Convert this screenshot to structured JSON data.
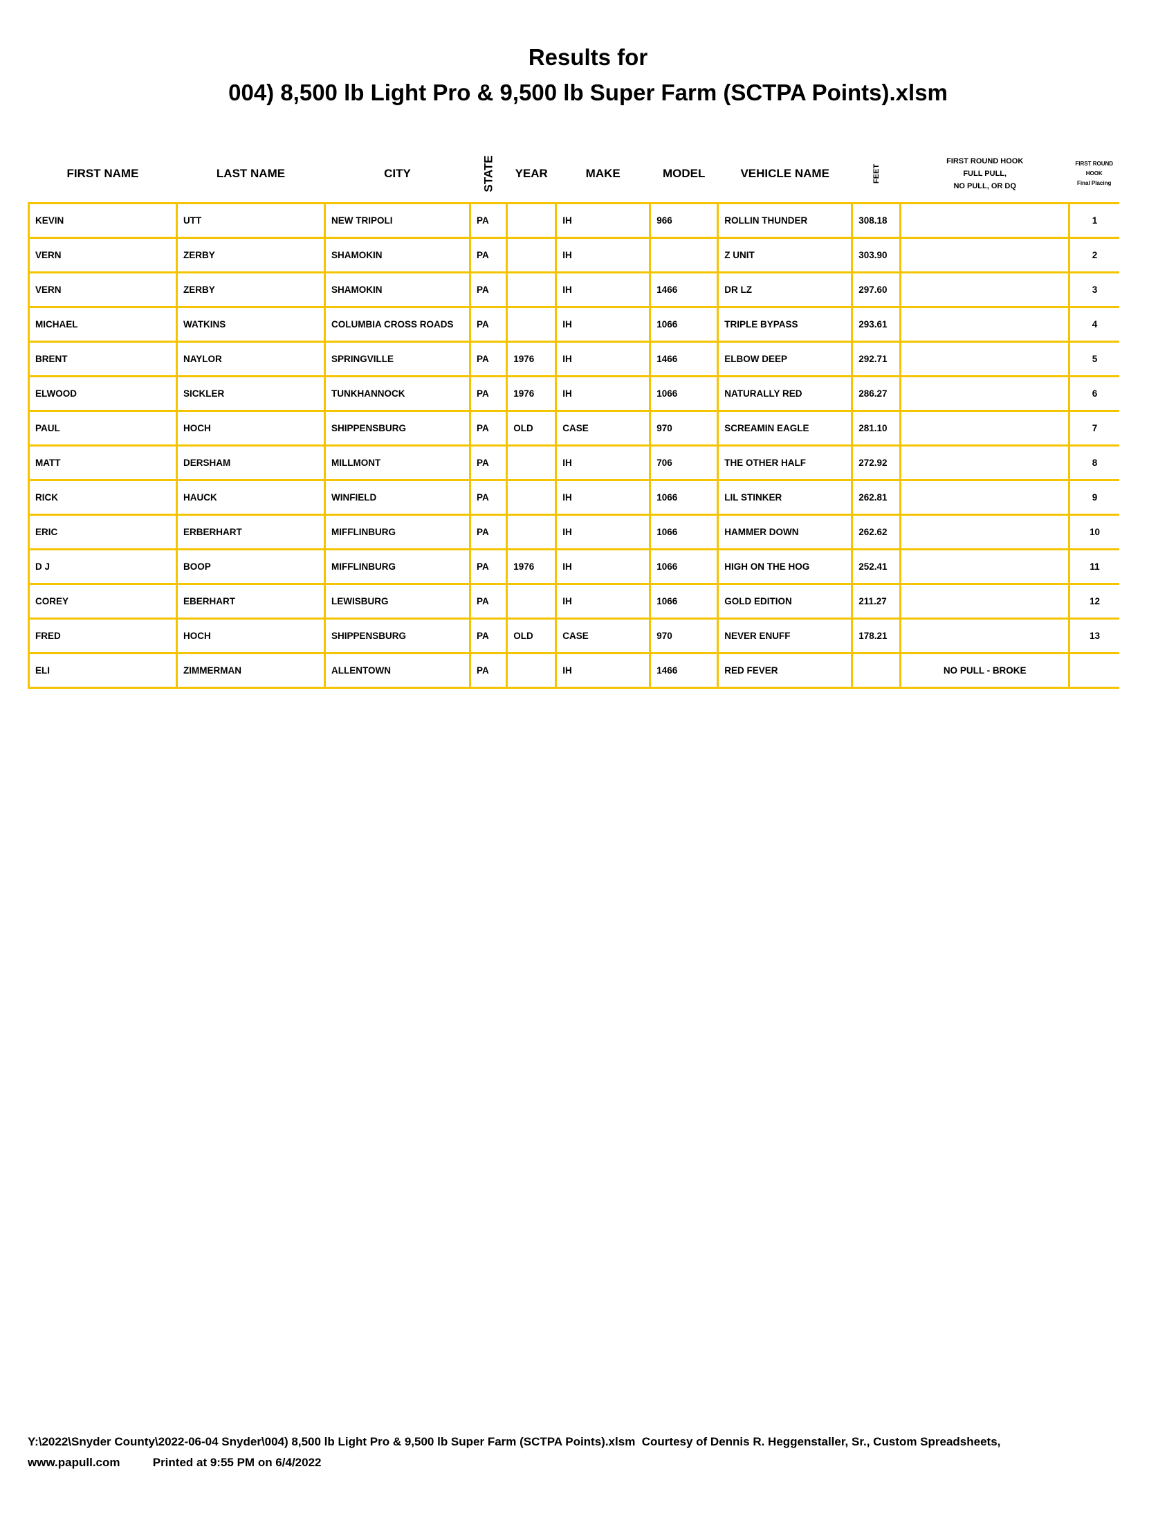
{
  "title_line1": "Results for",
  "title_line2": "004) 8,500 lb Light Pro & 9,500 lb Super Farm (SCTPA Points).xlsm",
  "border_color": "#f5c400",
  "headers": {
    "first_name": "FIRST NAME",
    "last_name": "LAST NAME",
    "city": "CITY",
    "state": "STATE",
    "year": "YEAR",
    "make": "MAKE",
    "model": "MODEL",
    "vehicle_name": "VEHICLE NAME",
    "feet": "FEET",
    "hook_status_1": "FIRST ROUND HOOK",
    "hook_status_2": "FULL PULL,",
    "hook_status_3": "NO PULL, OR DQ",
    "placing_1": "FIRST ROUND",
    "placing_2": "HOOK",
    "placing_3": "Final Placing"
  },
  "rows": [
    {
      "first": "KEVIN",
      "last": "UTT",
      "city": "NEW TRIPOLI",
      "state": "PA",
      "year": "",
      "make": "IH",
      "model": "966",
      "vehicle": "ROLLIN THUNDER",
      "feet": "308.18",
      "status": "",
      "place": "1"
    },
    {
      "first": "VERN",
      "last": "ZERBY",
      "city": "SHAMOKIN",
      "state": "PA",
      "year": "",
      "make": "IH",
      "model": "",
      "vehicle": "Z UNIT",
      "feet": "303.90",
      "status": "",
      "place": "2"
    },
    {
      "first": "VERN",
      "last": "ZERBY",
      "city": "SHAMOKIN",
      "state": "PA",
      "year": "",
      "make": "IH",
      "model": "1466",
      "vehicle": "DR LZ",
      "feet": "297.60",
      "status": "",
      "place": "3"
    },
    {
      "first": "MICHAEL",
      "last": "WATKINS",
      "city": "COLUMBIA CROSS ROADS",
      "state": "PA",
      "year": "",
      "make": "IH",
      "model": "1066",
      "vehicle": "TRIPLE BYPASS",
      "feet": "293.61",
      "status": "",
      "place": "4"
    },
    {
      "first": "BRENT",
      "last": "NAYLOR",
      "city": "SPRINGVILLE",
      "state": "PA",
      "year": "1976",
      "make": "IH",
      "model": "1466",
      "vehicle": "ELBOW DEEP",
      "feet": "292.71",
      "status": "",
      "place": "5"
    },
    {
      "first": "ELWOOD",
      "last": "SICKLER",
      "city": "TUNKHANNOCK",
      "state": "PA",
      "year": "1976",
      "make": "IH",
      "model": "1066",
      "vehicle": "NATURALLY RED",
      "feet": "286.27",
      "status": "",
      "place": "6"
    },
    {
      "first": "PAUL",
      "last": "HOCH",
      "city": "SHIPPENSBURG",
      "state": "PA",
      "year": "OLD",
      "make": "CASE",
      "model": "970",
      "vehicle": "SCREAMIN EAGLE",
      "feet": "281.10",
      "status": "",
      "place": "7"
    },
    {
      "first": "MATT",
      "last": "DERSHAM",
      "city": "MILLMONT",
      "state": "PA",
      "year": "",
      "make": "IH",
      "model": "706",
      "vehicle": "THE OTHER HALF",
      "feet": "272.92",
      "status": "",
      "place": "8"
    },
    {
      "first": "RICK",
      "last": "HAUCK",
      "city": "WINFIELD",
      "state": "PA",
      "year": "",
      "make": "IH",
      "model": "1066",
      "vehicle": "LIL STINKER",
      "feet": "262.81",
      "status": "",
      "place": "9"
    },
    {
      "first": "ERIC",
      "last": "ERBERHART",
      "city": "MIFFLINBURG",
      "state": "PA",
      "year": "",
      "make": "IH",
      "model": "1066",
      "vehicle": "HAMMER DOWN",
      "feet": "262.62",
      "status": "",
      "place": "10"
    },
    {
      "first": "D J",
      "last": "BOOP",
      "city": "MIFFLINBURG",
      "state": "PA",
      "year": "1976",
      "make": "IH",
      "model": "1066",
      "vehicle": "HIGH ON THE HOG",
      "feet": "252.41",
      "status": "",
      "place": "11"
    },
    {
      "first": "COREY",
      "last": "EBERHART",
      "city": "LEWISBURG",
      "state": "PA",
      "year": "",
      "make": "IH",
      "model": "1066",
      "vehicle": "GOLD EDITION",
      "feet": "211.27",
      "status": "",
      "place": "12"
    },
    {
      "first": "FRED",
      "last": "HOCH",
      "city": "SHIPPENSBURG",
      "state": "PA",
      "year": "OLD",
      "make": "CASE",
      "model": "970",
      "vehicle": "NEVER ENUFF",
      "feet": "178.21",
      "status": "",
      "place": "13"
    },
    {
      "first": "ELI",
      "last": "ZIMMERMAN",
      "city": "ALLENTOWN",
      "state": "PA",
      "year": "",
      "make": "IH",
      "model": "1466",
      "vehicle": "RED FEVER",
      "feet": "",
      "status": "NO PULL - BROKE",
      "place": ""
    }
  ],
  "footer_line1": "Y:\\2022\\Snyder County\\2022-06-04 Snyder\\004) 8,500 lb Light Pro & 9,500 lb Super Farm (SCTPA Points).xlsm  Courtesy of Dennis R. Heggenstaller, Sr., Custom Spreadsheets,",
  "footer_line2": "www.papull.com          Printed at 9:55 PM on 6/4/2022"
}
